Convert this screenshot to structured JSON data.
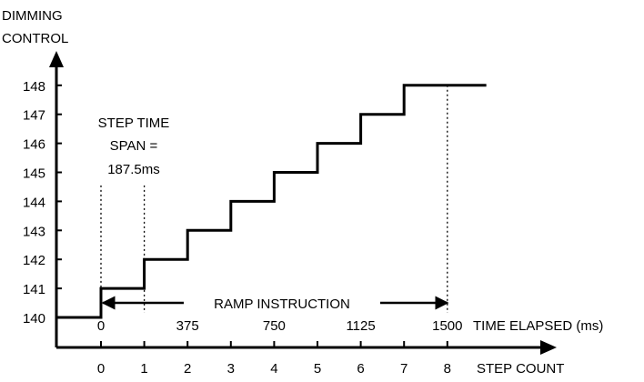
{
  "chart_data": {
    "type": "line",
    "title": "",
    "ylabel_lines": [
      "DIMMING",
      "CONTROL"
    ],
    "xlabel": "STEP COUNT",
    "step_ticks": [
      0,
      1,
      2,
      3,
      4,
      5,
      6,
      7,
      8
    ],
    "y_ticks": [
      140,
      141,
      142,
      143,
      144,
      145,
      146,
      147,
      148
    ],
    "ylim": [
      140,
      148
    ],
    "time_axis": {
      "label": "TIME ELAPSED (ms)",
      "ticks": [
        0,
        375,
        750,
        1125,
        1500
      ]
    },
    "series": [
      {
        "style": "step",
        "x": [
          -1,
          0,
          1,
          2,
          3,
          4,
          5,
          6,
          7,
          8.9
        ],
        "y": [
          140,
          141,
          142,
          143,
          144,
          145,
          146,
          147,
          148,
          148
        ]
      }
    ],
    "annotations": {
      "step_time_lines": [
        "STEP TIME",
        "SPAN =",
        "187.5ms"
      ],
      "ramp_label": "RAMP INSTRUCTION"
    },
    "colors": {
      "ink": "#000000"
    }
  }
}
